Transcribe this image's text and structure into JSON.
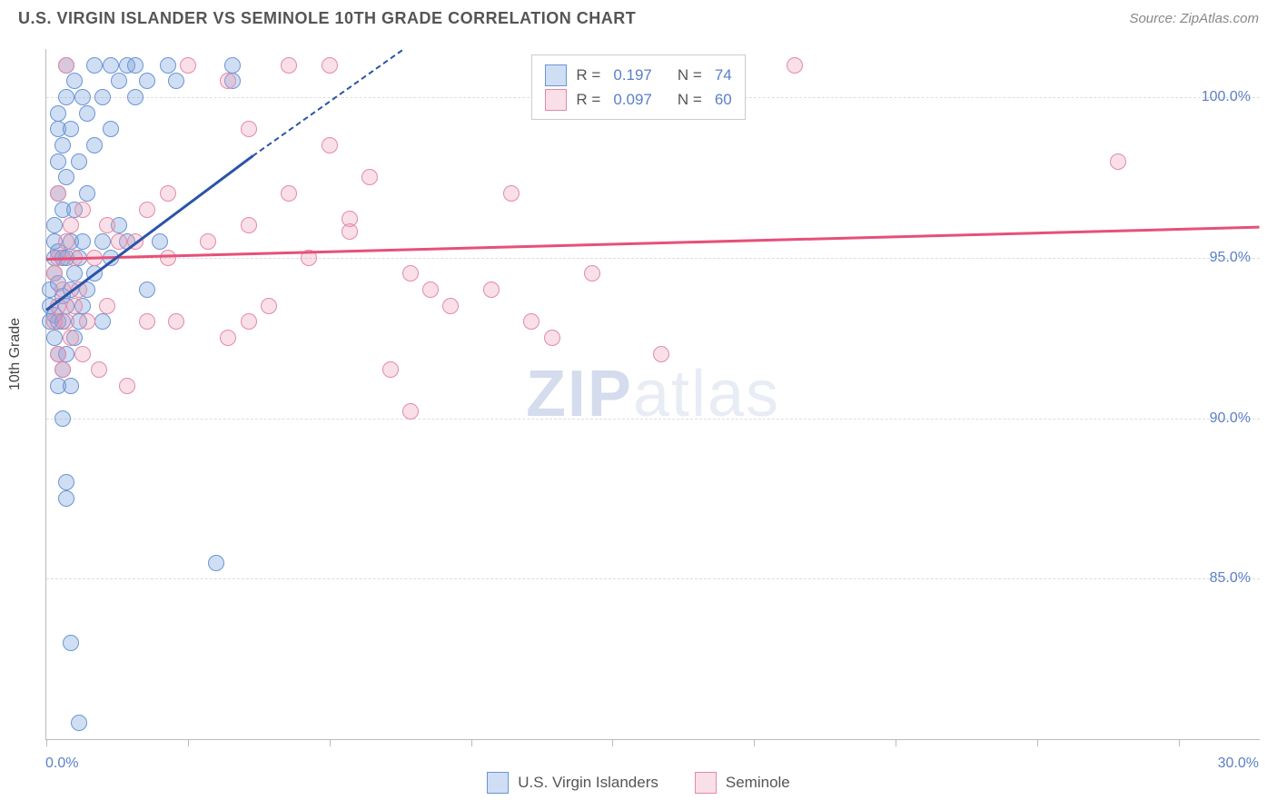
{
  "title": "U.S. VIRGIN ISLANDER VS SEMINOLE 10TH GRADE CORRELATION CHART",
  "source": "Source: ZipAtlas.com",
  "ylabel": "10th Grade",
  "watermark_a": "ZIP",
  "watermark_b": "atlas",
  "chart": {
    "type": "scatter",
    "xlim": [
      0,
      30
    ],
    "ylim": [
      80,
      101.5
    ],
    "y_ticks": [
      85,
      90,
      95,
      100
    ],
    "y_tick_labels": [
      "85.0%",
      "90.0%",
      "95.0%",
      "100.0%"
    ],
    "x_ticks": [
      0,
      3.5,
      7,
      10.5,
      14,
      17.5,
      21,
      24.5,
      28
    ],
    "x_min_label": "0.0%",
    "x_max_label": "30.0%",
    "background_color": "#ffffff",
    "grid_color": "#dddddd",
    "axis_color": "#bbbbbb",
    "tick_label_color": "#5b7fc7",
    "marker_radius": 9,
    "marker_stroke_width": 1.5,
    "series": [
      {
        "name": "U.S. Virgin Islanders",
        "fill": "rgba(120,160,220,0.35)",
        "stroke": "#6a95d6",
        "R": "0.197",
        "N": "74",
        "trend": {
          "x1": 0,
          "y1": 93.4,
          "x2": 5.1,
          "y2": 98.2,
          "dash_x2": 8.8,
          "dash_y2": 101.5,
          "color": "#2a54a8"
        },
        "points": [
          [
            0.1,
            93.0
          ],
          [
            0.1,
            93.5
          ],
          [
            0.1,
            94.0
          ],
          [
            0.2,
            92.5
          ],
          [
            0.2,
            93.2
          ],
          [
            0.2,
            94.5
          ],
          [
            0.2,
            95.0
          ],
          [
            0.2,
            95.5
          ],
          [
            0.2,
            96.0
          ],
          [
            0.3,
            91.0
          ],
          [
            0.3,
            92.0
          ],
          [
            0.3,
            93.0
          ],
          [
            0.3,
            94.2
          ],
          [
            0.3,
            95.2
          ],
          [
            0.3,
            97.0
          ],
          [
            0.3,
            98.0
          ],
          [
            0.3,
            99.0
          ],
          [
            0.3,
            99.5
          ],
          [
            0.4,
            90.0
          ],
          [
            0.4,
            91.5
          ],
          [
            0.4,
            93.0
          ],
          [
            0.4,
            93.8
          ],
          [
            0.4,
            95.0
          ],
          [
            0.4,
            96.5
          ],
          [
            0.4,
            98.5
          ],
          [
            0.5,
            87.5
          ],
          [
            0.5,
            88.0
          ],
          [
            0.5,
            92.0
          ],
          [
            0.5,
            93.5
          ],
          [
            0.5,
            95.0
          ],
          [
            0.5,
            97.5
          ],
          [
            0.5,
            100.0
          ],
          [
            0.5,
            101.0
          ],
          [
            0.6,
            83.0
          ],
          [
            0.6,
            91.0
          ],
          [
            0.6,
            94.0
          ],
          [
            0.6,
            95.5
          ],
          [
            0.6,
            99.0
          ],
          [
            0.7,
            92.5
          ],
          [
            0.7,
            94.5
          ],
          [
            0.7,
            96.5
          ],
          [
            0.7,
            100.5
          ],
          [
            0.8,
            80.5
          ],
          [
            0.8,
            93.0
          ],
          [
            0.8,
            95.0
          ],
          [
            0.8,
            98.0
          ],
          [
            0.9,
            93.5
          ],
          [
            0.9,
            95.5
          ],
          [
            0.9,
            100.0
          ],
          [
            1.0,
            94.0
          ],
          [
            1.0,
            99.5
          ],
          [
            1.0,
            97.0
          ],
          [
            1.2,
            94.5
          ],
          [
            1.2,
            98.5
          ],
          [
            1.2,
            101.0
          ],
          [
            1.4,
            93.0
          ],
          [
            1.4,
            95.5
          ],
          [
            1.4,
            100.0
          ],
          [
            1.6,
            95.0
          ],
          [
            1.6,
            99.0
          ],
          [
            1.6,
            101.0
          ],
          [
            1.8,
            96.0
          ],
          [
            1.8,
            100.5
          ],
          [
            2.0,
            95.5
          ],
          [
            2.0,
            101.0
          ],
          [
            2.2,
            100.0
          ],
          [
            2.2,
            101.0
          ],
          [
            2.5,
            94.0
          ],
          [
            2.5,
            100.5
          ],
          [
            2.8,
            95.5
          ],
          [
            3.0,
            101.0
          ],
          [
            3.2,
            100.5
          ],
          [
            4.2,
            85.5
          ],
          [
            4.6,
            101.0
          ],
          [
            4.6,
            100.5
          ]
        ]
      },
      {
        "name": "Seminole",
        "fill": "rgba(235,150,175,0.30)",
        "stroke": "#e48aa6",
        "R": "0.097",
        "N": "60",
        "trend": {
          "x1": 0,
          "y1": 95.0,
          "x2": 30,
          "y2": 96.0,
          "color": "#e6507a"
        },
        "points": [
          [
            0.2,
            93.0
          ],
          [
            0.2,
            94.5
          ],
          [
            0.3,
            92.0
          ],
          [
            0.3,
            93.5
          ],
          [
            0.3,
            95.0
          ],
          [
            0.3,
            97.0
          ],
          [
            0.4,
            91.5
          ],
          [
            0.4,
            94.0
          ],
          [
            0.5,
            93.0
          ],
          [
            0.5,
            95.5
          ],
          [
            0.5,
            101.0
          ],
          [
            0.6,
            92.5
          ],
          [
            0.6,
            96.0
          ],
          [
            0.7,
            93.5
          ],
          [
            0.7,
            95.0
          ],
          [
            0.8,
            94.0
          ],
          [
            0.9,
            92.0
          ],
          [
            0.9,
            96.5
          ],
          [
            1.0,
            93.0
          ],
          [
            1.2,
            95.0
          ],
          [
            1.3,
            91.5
          ],
          [
            1.5,
            93.5
          ],
          [
            1.5,
            96.0
          ],
          [
            1.8,
            95.5
          ],
          [
            2.0,
            91.0
          ],
          [
            2.2,
            95.5
          ],
          [
            2.5,
            93.0
          ],
          [
            2.5,
            96.5
          ],
          [
            3.0,
            97.0
          ],
          [
            3.0,
            95.0
          ],
          [
            3.2,
            93.0
          ],
          [
            3.5,
            101.0
          ],
          [
            4.0,
            95.5
          ],
          [
            4.5,
            92.5
          ],
          [
            4.5,
            100.5
          ],
          [
            5.0,
            93.0
          ],
          [
            5.0,
            99.0
          ],
          [
            5.0,
            96.0
          ],
          [
            5.5,
            93.5
          ],
          [
            6.0,
            97.0
          ],
          [
            6.0,
            101.0
          ],
          [
            6.5,
            95.0
          ],
          [
            7.0,
            101.0
          ],
          [
            7.0,
            98.5
          ],
          [
            7.5,
            96.2
          ],
          [
            7.5,
            95.8
          ],
          [
            8.0,
            97.5
          ],
          [
            8.5,
            91.5
          ],
          [
            9.0,
            90.2
          ],
          [
            9.0,
            94.5
          ],
          [
            9.5,
            94.0
          ],
          [
            10.0,
            93.5
          ],
          [
            11.0,
            94.0
          ],
          [
            11.5,
            97.0
          ],
          [
            12.0,
            93.0
          ],
          [
            12.5,
            92.5
          ],
          [
            13.5,
            94.5
          ],
          [
            15.2,
            92.0
          ],
          [
            18.5,
            101.0
          ],
          [
            26.5,
            98.0
          ]
        ]
      }
    ]
  },
  "legend_top": {
    "r_label": "R =",
    "n_label": "N ="
  },
  "legend_bottom": {
    "a": "U.S. Virgin Islanders",
    "b": "Seminole"
  }
}
